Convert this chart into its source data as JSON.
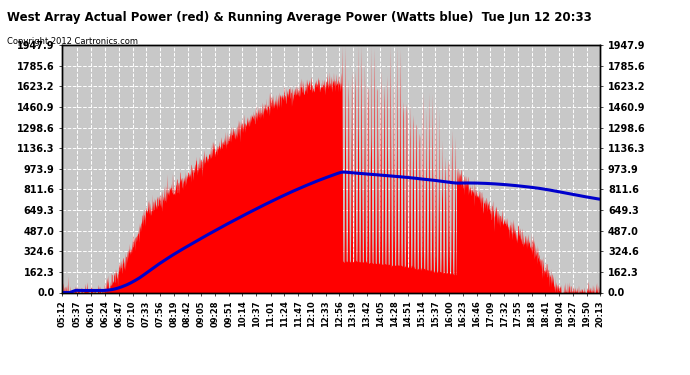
{
  "title": "West Array Actual Power (red) & Running Average Power (Watts blue)  Tue Jun 12 20:33",
  "copyright": "Copyright 2012 Cartronics.com",
  "ymax": 1947.9,
  "yticks": [
    0.0,
    162.3,
    324.6,
    487.0,
    649.3,
    811.6,
    973.9,
    1136.3,
    1298.6,
    1460.9,
    1623.2,
    1785.6,
    1947.9
  ],
  "bg_color": "#ffffff",
  "plot_bg": "#c8c8c8",
  "grid_color": "#ffffff",
  "red_color": "#ff0000",
  "blue_color": "#0000cc",
  "xtick_labels": [
    "05:12",
    "05:37",
    "06:01",
    "06:24",
    "06:47",
    "07:10",
    "07:33",
    "07:56",
    "08:19",
    "08:42",
    "09:05",
    "09:28",
    "09:51",
    "10:14",
    "10:37",
    "11:01",
    "11:24",
    "11:47",
    "12:10",
    "12:33",
    "12:56",
    "13:19",
    "13:42",
    "14:05",
    "14:28",
    "14:51",
    "15:14",
    "15:37",
    "16:00",
    "16:23",
    "16:46",
    "17:09",
    "17:32",
    "17:55",
    "18:18",
    "18:41",
    "19:04",
    "19:27",
    "19:50",
    "20:13"
  ]
}
